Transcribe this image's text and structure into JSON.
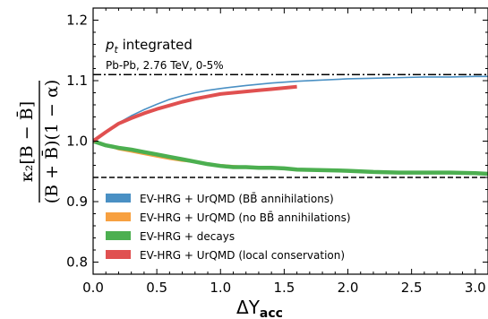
{
  "chart_data": {
    "type": "line",
    "xlabel": "ΔY",
    "xlabel_sub": "acc",
    "ylabel_num": "κ₂[B − B̄]",
    "ylabel_den": "(B + B̄)(1 − α)",
    "xlim": [
      0.0,
      3.1
    ],
    "ylim": [
      0.78,
      1.22
    ],
    "xticks": [
      0.0,
      0.5,
      1.0,
      1.5,
      2.0,
      2.5,
      3.0
    ],
    "yticks": [
      0.8,
      0.9,
      1.0,
      1.1,
      1.2
    ],
    "xtick_labels": [
      "0.0",
      "0.5",
      "1.0",
      "1.5",
      "2.0",
      "2.5",
      "3.0"
    ],
    "ytick_labels": [
      "0.8",
      "0.9",
      "1.0",
      "1.1",
      "1.2"
    ],
    "annotation_main": "p",
    "annotation_main_sub": "t",
    "annotation_main_rest": " integrated",
    "annotation_sub": "Pb-Pb, 2.76 TeV, 0-5%",
    "legend_position": "lower-left",
    "reference_lines": [
      {
        "y": 1.11,
        "style": "dashdot"
      },
      {
        "y": 0.94,
        "style": "dashed"
      }
    ],
    "series": [
      {
        "name": "EV-HRG + UrQMD (BB̄ annihilations)",
        "color": "#4a90c4",
        "width": 1.6,
        "x": [
          0.0,
          0.1,
          0.2,
          0.3,
          0.4,
          0.5,
          0.6,
          0.7,
          0.8,
          0.9,
          1.0,
          1.2,
          1.4,
          1.6,
          1.8,
          2.0,
          2.2,
          2.4,
          2.6,
          2.8,
          3.0,
          3.1
        ],
        "y": [
          1.0,
          1.015,
          1.03,
          1.042,
          1.052,
          1.061,
          1.069,
          1.075,
          1.08,
          1.084,
          1.087,
          1.092,
          1.096,
          1.099,
          1.101,
          1.103,
          1.104,
          1.105,
          1.106,
          1.106,
          1.107,
          1.107
        ]
      },
      {
        "name": "EV-HRG + UrQMD (no BB̄ annihilations)",
        "color": "#f7a040",
        "width": 1.6,
        "x": [
          0.0,
          0.1,
          0.2,
          0.3,
          0.4,
          0.5,
          0.6,
          0.7,
          0.8,
          0.9,
          1.0,
          1.2,
          1.4,
          1.6,
          1.8,
          2.0,
          2.2,
          2.4,
          2.6,
          2.8,
          3.0,
          3.1
        ],
        "y": [
          1.0,
          0.993,
          0.986,
          0.982,
          0.978,
          0.974,
          0.97,
          0.967,
          0.965,
          0.963,
          0.961,
          0.958,
          0.956,
          0.954,
          0.952,
          0.951,
          0.949,
          0.949,
          0.948,
          0.948,
          0.947,
          0.947
        ]
      },
      {
        "name": "EV-HRG + decays",
        "color": "#4caf50",
        "width": 4.5,
        "x": [
          0.0,
          0.1,
          0.2,
          0.3,
          0.4,
          0.5,
          0.6,
          0.7,
          0.8,
          0.9,
          1.0,
          1.1,
          1.2,
          1.3,
          1.4,
          1.5,
          1.6,
          1.8,
          2.0,
          2.2,
          2.4,
          2.6,
          2.8,
          3.0,
          3.1
        ],
        "y": [
          1.0,
          0.993,
          0.989,
          0.986,
          0.982,
          0.978,
          0.974,
          0.97,
          0.966,
          0.962,
          0.959,
          0.957,
          0.957,
          0.956,
          0.956,
          0.955,
          0.953,
          0.952,
          0.951,
          0.949,
          0.948,
          0.948,
          0.948,
          0.947,
          0.946
        ]
      },
      {
        "name": "EV-HRG + UrQMD (local conservation)",
        "color": "#e05050",
        "width": 4.0,
        "x": [
          0.0,
          0.1,
          0.2,
          0.3,
          0.4,
          0.5,
          0.6,
          0.7,
          0.8,
          0.9,
          1.0,
          1.1,
          1.2,
          1.3,
          1.4,
          1.5,
          1.6
        ],
        "y": [
          1.0,
          1.015,
          1.029,
          1.038,
          1.046,
          1.053,
          1.059,
          1.065,
          1.07,
          1.074,
          1.078,
          1.08,
          1.082,
          1.084,
          1.086,
          1.088,
          1.09
        ]
      }
    ]
  }
}
